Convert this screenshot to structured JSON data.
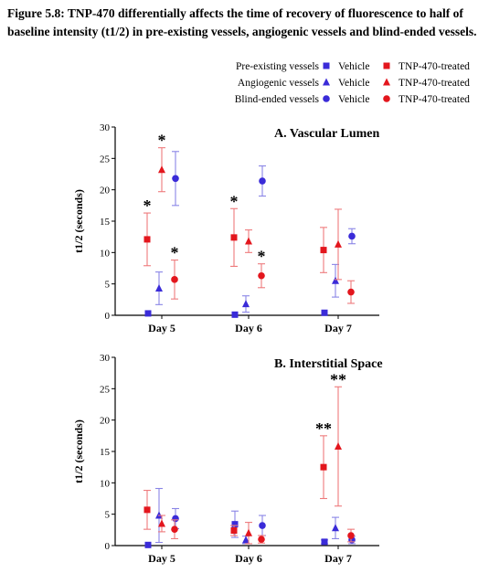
{
  "caption": "Figure 5.8: TNP-470 differentially affects the time of recovery of fluorescence to half of baseline intensity (t1/2) in pre-existing vessels, angiogenic vessels and blind-ended vessels.",
  "legend": {
    "rows": [
      {
        "label": "Pre-existing vessels",
        "vehicle": "Vehicle",
        "treated": "TNP-470-treated",
        "marker": "square"
      },
      {
        "label": "Angiogenic vessels",
        "vehicle": "Vehicle",
        "treated": "TNP-470-treated",
        "marker": "triangle"
      },
      {
        "label": "Blind-ended vessels",
        "vehicle": "Vehicle",
        "treated": "TNP-470-treated",
        "marker": "circle"
      }
    ]
  },
  "colors": {
    "vehicle": "#3a2bd8",
    "treated": "#e3161d",
    "vehicle_err": "#8a85e6",
    "treated_err": "#ee7a7c"
  },
  "chart_data": [
    {
      "type": "scatter",
      "title": "A. Vascular Lumen",
      "ylabel": "t1/2 (seconds)",
      "ylim": [
        0,
        30
      ],
      "yticks": [
        0,
        5,
        10,
        15,
        20,
        25,
        30
      ],
      "categories": [
        "Day 5",
        "Day 6",
        "Day 7"
      ],
      "series": [
        {
          "name": "Pre-existing vessels Vehicle",
          "group": "vehicle",
          "marker": "square",
          "values": [
            0.3,
            0.1,
            0.4
          ],
          "errors": [
            0,
            0,
            0
          ],
          "stars": [
            "",
            "",
            ""
          ]
        },
        {
          "name": "Pre-existing vessels TNP-470-treated",
          "group": "treated",
          "marker": "square",
          "values": [
            12.1,
            12.4,
            10.4
          ],
          "errors": [
            4.2,
            4.6,
            3.6
          ],
          "stars": [
            "*",
            "*",
            ""
          ]
        },
        {
          "name": "Angiogenic vessels Vehicle",
          "group": "vehicle",
          "marker": "triangle",
          "values": [
            4.3,
            1.8,
            5.5
          ],
          "errors": [
            2.6,
            1.3,
            2.6
          ],
          "stars": [
            "",
            "",
            ""
          ]
        },
        {
          "name": "Angiogenic vessels TNP-470-treated",
          "group": "treated",
          "marker": "triangle",
          "values": [
            23.2,
            11.8,
            11.3
          ],
          "errors": [
            3.5,
            1.8,
            5.6
          ],
          "stars": [
            "*",
            "",
            ""
          ]
        },
        {
          "name": "Blind-ended vessels Vehicle",
          "group": "vehicle",
          "marker": "circle",
          "values": [
            21.8,
            21.4,
            12.6
          ],
          "errors": [
            4.3,
            2.4,
            1.2
          ],
          "stars": [
            "",
            "",
            ""
          ]
        },
        {
          "name": "Blind-ended vessels TNP-470-treated",
          "group": "treated",
          "marker": "circle",
          "values": [
            5.7,
            6.3,
            3.7
          ],
          "errors": [
            3.1,
            1.9,
            1.8
          ],
          "stars": [
            "*",
            "*",
            ""
          ]
        }
      ]
    },
    {
      "type": "scatter",
      "title": "B. Interstitial Space",
      "ylabel": "t1/2 (seconds)",
      "ylim": [
        0,
        30
      ],
      "yticks": [
        0,
        5,
        10,
        15,
        20,
        25,
        30
      ],
      "categories": [
        "Day 5",
        "Day 6",
        "Day 7"
      ],
      "series": [
        {
          "name": "Pre-existing vessels Vehicle",
          "group": "vehicle",
          "marker": "square",
          "values": [
            0.1,
            3.4,
            0.6
          ],
          "errors": [
            0,
            2.1,
            0.3
          ],
          "stars": [
            "",
            "",
            ""
          ]
        },
        {
          "name": "Pre-existing vessels TNP-470-treated",
          "group": "treated",
          "marker": "square",
          "values": [
            5.7,
            2.4,
            12.5
          ],
          "errors": [
            3.1,
            0.8,
            5.0
          ],
          "stars": [
            "",
            "",
            "**"
          ]
        },
        {
          "name": "Angiogenic vessels Vehicle",
          "group": "vehicle",
          "marker": "triangle",
          "values": [
            4.8,
            0.9,
            2.8
          ],
          "errors": [
            4.3,
            0.6,
            1.7
          ],
          "stars": [
            "",
            "",
            ""
          ]
        },
        {
          "name": "Angiogenic vessels TNP-470-treated",
          "group": "treated",
          "marker": "triangle",
          "values": [
            3.5,
            2.0,
            15.8
          ],
          "errors": [
            1.3,
            1.7,
            9.5
          ],
          "stars": [
            "",
            "",
            "**"
          ]
        },
        {
          "name": "Blind-ended vessels Vehicle",
          "group": "vehicle",
          "marker": "circle",
          "values": [
            4.3,
            3.2,
            0.9
          ],
          "errors": [
            1.6,
            1.6,
            0.6
          ],
          "stars": [
            "",
            "",
            ""
          ]
        },
        {
          "name": "Blind-ended vessels TNP-470-treated",
          "group": "treated",
          "marker": "circle",
          "values": [
            2.6,
            1.0,
            1.6
          ],
          "errors": [
            1.5,
            0.6,
            1.0
          ],
          "stars": [
            "",
            "",
            ""
          ]
        }
      ]
    }
  ]
}
